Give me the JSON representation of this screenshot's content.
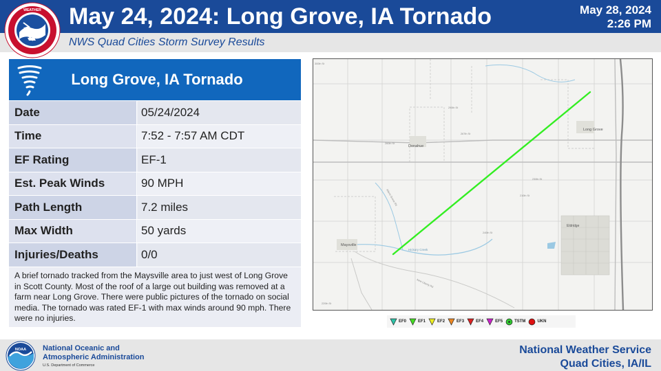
{
  "header": {
    "title": "May 24, 2024:  Long Grove, IA Tornado",
    "date_line1": "May 28, 2024",
    "date_line2": "2:26 PM",
    "subtitle": "NWS Quad Cities Storm Survey Results",
    "logo_text": "NATIONAL WEATHER SERVICE"
  },
  "card": {
    "title": "Long Grove, IA Tornado",
    "rows": [
      {
        "label": "Date",
        "value": "05/24/2024"
      },
      {
        "label": "Time",
        "value": "7:52 - 7:57 AM CDT"
      },
      {
        "label": "EF Rating",
        "value": "EF-1"
      },
      {
        "label": "Est. Peak Winds",
        "value": "90 MPH"
      },
      {
        "label": "Path Length",
        "value": "7.2 miles"
      },
      {
        "label": "Max Width",
        "value": "50 yards"
      },
      {
        "label": "Injuries/Deaths",
        "value": "0/0"
      }
    ],
    "description": "A brief tornado tracked from the Maysville area to just west of Long Grove in Scott County. Most of the roof of a large out building was removed at a farm near Long Grove. There were public pictures of the tornado on social media. The tornado was rated EF-1 with max winds around 90 mph. There were no injuries."
  },
  "map": {
    "track_color": "#33ee22",
    "places": {
      "long_grove": "Long Grove",
      "donahue": "Donahue",
      "maysville": "Maysville",
      "eldridge": "Eldridge",
      "hickory_creek": "Hickory Creek"
    },
    "roads": {
      "r1": "290th St",
      "r2": "267th St",
      "r3": "260th St",
      "r4": "240th St",
      "r5": "230th St",
      "r6": "210th St",
      "r7": "Allens Grove Rd",
      "r8": "New Liberty Rd",
      "r9": "220th St",
      "r10": "300th St"
    }
  },
  "legend": {
    "items": [
      {
        "label": "EF0",
        "color": "#2ec4a8",
        "shape": "triangle"
      },
      {
        "label": "EF1",
        "color": "#44dd22",
        "shape": "triangle"
      },
      {
        "label": "EF2",
        "color": "#eeee22",
        "shape": "triangle"
      },
      {
        "label": "EF3",
        "color": "#ee8822",
        "shape": "triangle"
      },
      {
        "label": "EF4",
        "color": "#dd2222",
        "shape": "triangle"
      },
      {
        "label": "EF5",
        "color": "#cc22cc",
        "shape": "triangle"
      },
      {
        "label": "TSTM",
        "color": "#33cc33",
        "shape": "circle"
      },
      {
        "label": "UKN",
        "color": "#dd1111",
        "shape": "circle"
      }
    ]
  },
  "footer": {
    "noaa_line1": "National Oceanic and",
    "noaa_line2": "Atmospheric Administration",
    "noaa_dept": "U.S. Department of Commerce",
    "noaa_badge": "NOAA",
    "office_line1": "National Weather Service",
    "office_line2": "Quad Cities, IA/IL"
  }
}
